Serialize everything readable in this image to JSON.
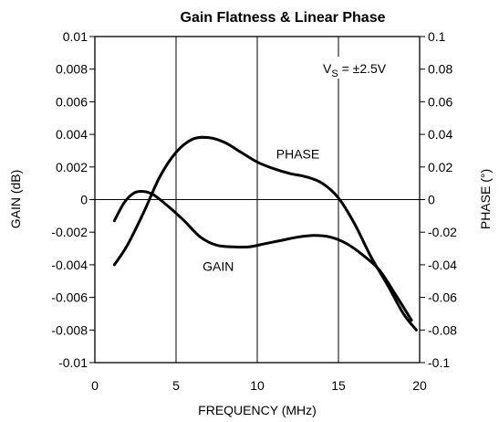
{
  "chart_data": {
    "type": "line",
    "title": "Gain Flatness & Linear Phase",
    "xlabel": "FREQUENCY (MHz)",
    "ylabel_left": "GAIN (dB)",
    "ylabel_right": "PHASE (°)",
    "xlim": [
      0,
      20
    ],
    "ylim_left": [
      -0.01,
      0.01
    ],
    "ylim_right": [
      -0.1,
      0.1
    ],
    "x_ticks": [
      "0",
      "5",
      "10",
      "15",
      "20"
    ],
    "y_ticks_left": [
      "0.01",
      "0.008",
      "0.006",
      "0.004",
      "0.002",
      "0",
      "-0.002",
      "-0.004",
      "-0.006",
      "-0.008",
      "-0.01"
    ],
    "y_ticks_right": [
      "0.1",
      "0.08",
      "0.06",
      "0.04",
      "0.02",
      "0",
      "-0.02",
      "-0.04",
      "-0.06",
      "-0.08",
      "-0.1"
    ],
    "grid": true,
    "annotation": {
      "base": "V",
      "sub": "S",
      "rest": " = ±2.5V"
    },
    "series": [
      {
        "name": "GAIN",
        "axis": "left",
        "x": [
          1.2,
          1.8,
          2.4,
          3.0,
          3.6,
          4.5,
          5.5,
          6.5,
          7.5,
          8.5,
          9.5,
          10.5,
          11.5,
          12.5,
          13.5,
          14.5,
          15.5,
          16.5,
          17.5,
          18.5,
          19.5
        ],
        "values": [
          -0.0013,
          -0.0002,
          0.0004,
          0.0005,
          0.0003,
          -0.0004,
          -0.0013,
          -0.0023,
          -0.0028,
          -0.0029,
          -0.0029,
          -0.0027,
          -0.0025,
          -0.0023,
          -0.0022,
          -0.0023,
          -0.0027,
          -0.0034,
          -0.0043,
          -0.0058,
          -0.0074
        ]
      },
      {
        "name": "PHASE",
        "axis": "right",
        "x": [
          1.2,
          2.0,
          3.0,
          4.0,
          5.0,
          6.0,
          7.0,
          8.0,
          9.0,
          10.0,
          11.0,
          12.0,
          13.0,
          14.0,
          15.0,
          16.0,
          17.0,
          18.0,
          19.0,
          19.8
        ],
        "values": [
          -0.04,
          -0.028,
          -0.008,
          0.014,
          0.029,
          0.037,
          0.038,
          0.035,
          0.029,
          0.023,
          0.019,
          0.016,
          0.014,
          0.01,
          0.001,
          -0.015,
          -0.035,
          -0.052,
          -0.07,
          -0.08
        ]
      }
    ],
    "series_labels": [
      {
        "text": "GAIN",
        "x": 7.6,
        "y": -0.0041
      },
      {
        "text": "PHASE",
        "x": 12.5,
        "y": 0.028
      }
    ]
  }
}
